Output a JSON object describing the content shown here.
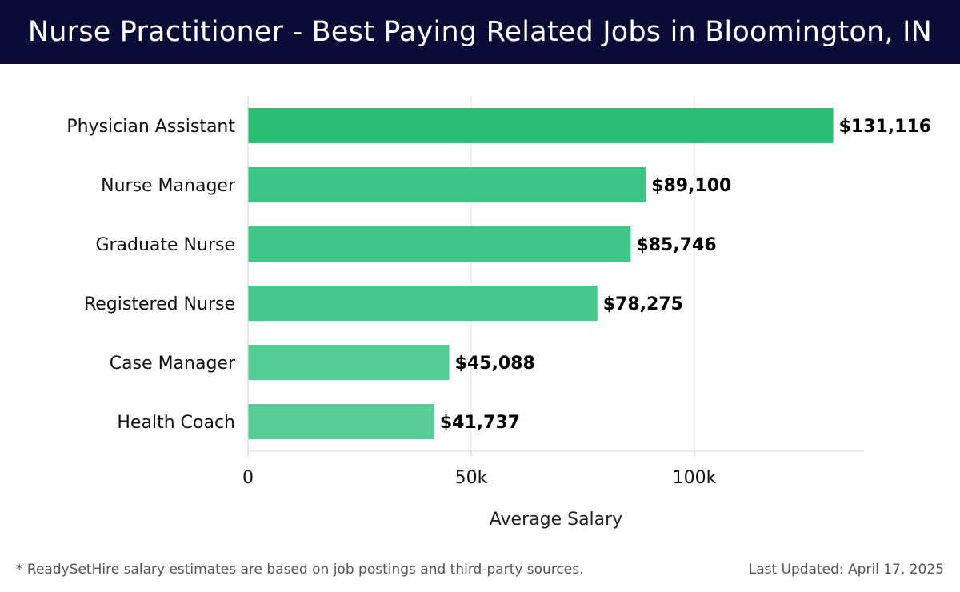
{
  "header": {
    "title": "Nurse Practitioner - Best Paying Related Jobs in Bloomington, IN"
  },
  "chart_data": {
    "type": "bar",
    "orientation": "horizontal",
    "categories": [
      "Physician Assistant",
      "Nurse Manager",
      "Graduate Nurse",
      "Registered Nurse",
      "Case Manager",
      "Health Coach"
    ],
    "values": [
      131116,
      89100,
      85746,
      78275,
      45088,
      41737
    ],
    "value_labels": [
      "$131,116",
      "$89,100",
      "$85,746",
      "$78,275",
      "$45,088",
      "$41,737"
    ],
    "xlabel": "Average Salary",
    "ylabel": "",
    "xlim": [
      0,
      138000
    ],
    "x_ticks": [
      0,
      50000,
      100000
    ],
    "x_tick_labels": [
      "0",
      "50k",
      "100k"
    ],
    "grid": "vertical",
    "colors": [
      "#2bbf76",
      "#3cc486",
      "#41c589",
      "#48c78d",
      "#55cb96",
      "#59cc98"
    ]
  },
  "footer": {
    "note": "* ReadySetHire salary estimates are based on job postings and third-party sources.",
    "updated": "Last Updated: April 17, 2025"
  }
}
